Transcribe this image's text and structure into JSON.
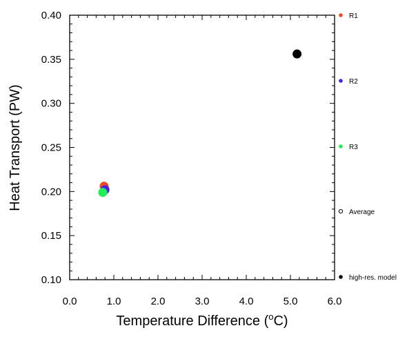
{
  "chart_data": {
    "type": "scatter",
    "xlabel_main": "Temperature Difference (",
    "xlabel_degree": "o",
    "xlabel_unit": "C)",
    "ylabel": "Heat Transport (PW)",
    "xlim": [
      0,
      6
    ],
    "ylim": [
      0.1,
      0.4
    ],
    "x_ticks": [
      "0.0",
      "1.0",
      "2.0",
      "3.0",
      "4.0",
      "5.0",
      "6.0"
    ],
    "y_ticks": [
      "0.10",
      "0.15",
      "0.20",
      "0.25",
      "0.30",
      "0.35",
      "0.40"
    ],
    "series": [
      {
        "name": "R1",
        "color": "#f24a1d",
        "marker": "filled-circle",
        "x": 0.78,
        "y": 0.206
      },
      {
        "name": "R2",
        "color": "#4a1fe6",
        "marker": "filled-circle",
        "x": 0.8,
        "y": 0.202
      },
      {
        "name": "R3",
        "color": "#22ee55",
        "marker": "filled-circle",
        "x": 0.75,
        "y": 0.199
      },
      {
        "name": "Average",
        "color": "#000000",
        "marker": "open-circle",
        "x": null,
        "y": null
      },
      {
        "name": "high-res. model",
        "color": "#000000",
        "marker": "filled-circle",
        "x": 5.15,
        "y": 0.356
      }
    ],
    "grid": false,
    "legend_placement": "right"
  }
}
